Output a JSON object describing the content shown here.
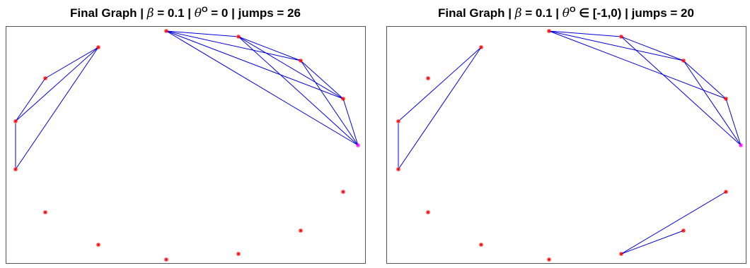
{
  "panels": [
    {
      "title": {
        "lead": "Final Graph | ",
        "beta": "β",
        "mid": " = 0.1 | ",
        "theta": "θ",
        "sup": "O",
        "tail": " = 0 | jumps = 26"
      }
    },
    {
      "title": {
        "lead": "Final Graph | ",
        "beta": "β",
        "mid": " = 0.1 | ",
        "theta": "θ",
        "sup": "O",
        "tail": " ∈ [-1,0) | jumps = 20"
      }
    }
  ]
}
